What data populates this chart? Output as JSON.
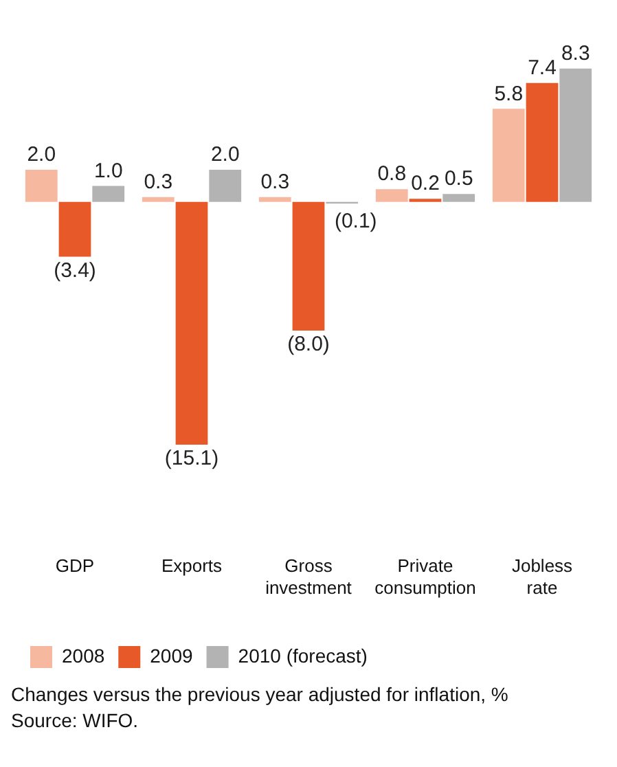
{
  "chart_data": {
    "type": "bar",
    "categories": [
      "GDP",
      "Exports",
      "Gross investment",
      "Private consumption",
      "Jobless rate"
    ],
    "series": [
      {
        "name": "2008",
        "color": "#f7b8a0",
        "values": [
          2.0,
          0.3,
          0.3,
          0.8,
          5.8
        ],
        "value_labels": [
          "2.0",
          "0.3",
          "0.3",
          "0.8",
          "5.8"
        ]
      },
      {
        "name": "2009",
        "color": "#e8592a",
        "values": [
          -3.4,
          -15.1,
          -8.0,
          0.2,
          7.4
        ],
        "value_labels": [
          "(3.4)",
          "(15.1)",
          "(8.0)",
          "0.2",
          "7.4"
        ]
      },
      {
        "name": "2010 (forecast)",
        "color": "#b3b3b3",
        "values": [
          1.0,
          2.0,
          -0.1,
          0.5,
          8.3
        ],
        "value_labels": [
          "1.0",
          "2.0",
          "(0.1)",
          "0.5",
          "8.3"
        ]
      }
    ],
    "legend": "bottom",
    "grid": false,
    "annotations": [
      "Changes versus the previous year adjusted for inflation, %",
      "Source: WIFO."
    ]
  }
}
